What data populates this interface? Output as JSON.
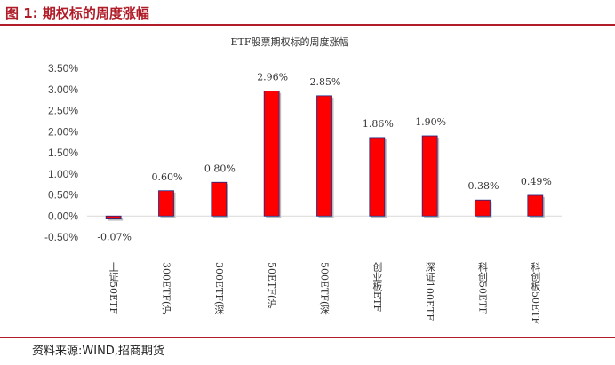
{
  "figure": {
    "title": "图 1:  期权标的周度涨幅",
    "source": "资料来源:WIND,招商期货"
  },
  "colors": {
    "accent": "#b01c28",
    "bar_fill": "#ff0000",
    "bar_stroke": "#1a2a8a",
    "bar_shadow": "#bcbcbc",
    "axis": "#d9d9d9"
  },
  "chart_data": {
    "type": "bar",
    "title": "ETF股票期权标的周度涨幅",
    "categories": [
      "上证50ETF",
      "300ETF(沪",
      "300ETF(深",
      "50ETF(沪",
      "500ETF(深",
      "创业板ETF",
      "深证100ETF",
      "科创50ETF",
      "科创板50ETF"
    ],
    "values": [
      -0.07,
      0.6,
      0.8,
      2.96,
      2.85,
      1.86,
      1.9,
      0.38,
      0.49
    ],
    "data_labels": [
      "-0.07%",
      "0.60%",
      "0.80%",
      "2.96%",
      "2.85%",
      "1.86%",
      "1.90%",
      "0.38%",
      "0.49%"
    ],
    "ylim": [
      -0.5,
      3.5
    ],
    "yticks": [
      3.5,
      3.0,
      2.5,
      2.0,
      1.5,
      1.0,
      0.5,
      0.0,
      -0.5
    ],
    "ytick_labels": [
      "3.50%",
      "3.00%",
      "2.50%",
      "2.00%",
      "1.50%",
      "1.00%",
      "0.50%",
      "0.00%",
      "-0.50%"
    ],
    "xlabel": "",
    "ylabel": "",
    "grid": false,
    "legend": false
  }
}
